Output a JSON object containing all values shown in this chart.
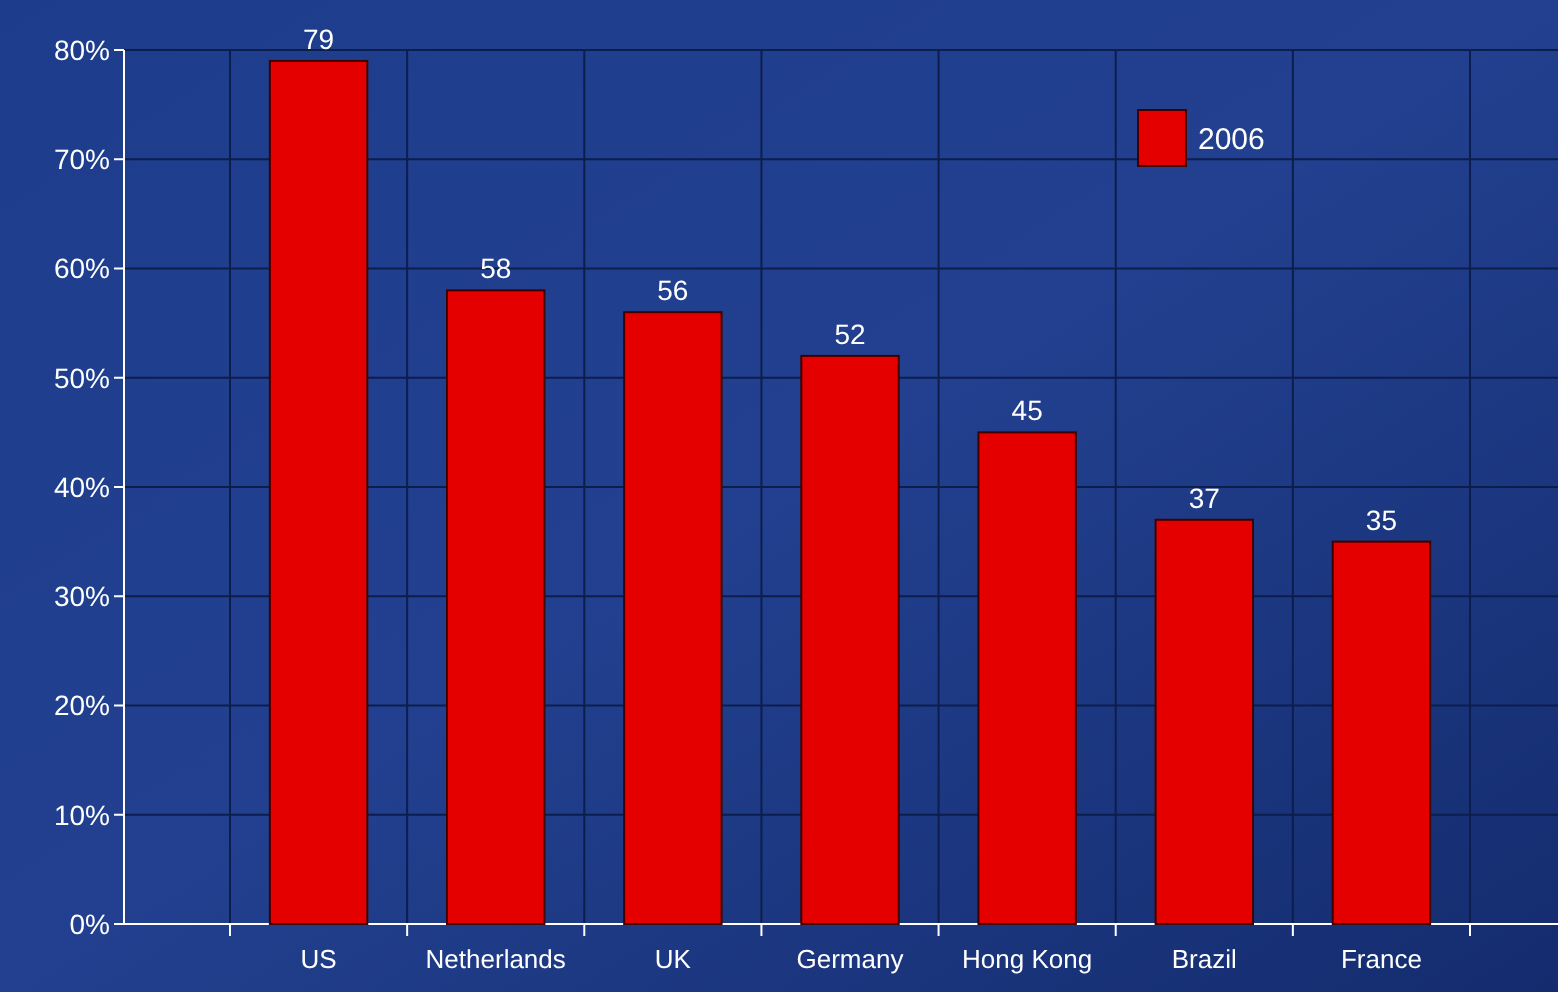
{
  "chart_data": {
    "type": "bar",
    "categories": [
      "US",
      "Netherlands",
      "UK",
      "Germany",
      "Hong Kong",
      "Brazil",
      "France"
    ],
    "series": [
      {
        "name": "2006",
        "color": "#e50000",
        "values": [
          79,
          58,
          56,
          52,
          45,
          37,
          35
        ]
      }
    ],
    "ylim": [
      0,
      80
    ],
    "yticks": [
      {
        "value": 0,
        "label": "0%"
      },
      {
        "value": 10,
        "label": "10%"
      },
      {
        "value": 20,
        "label": "20%"
      },
      {
        "value": 30,
        "label": "30%"
      },
      {
        "value": 40,
        "label": "40%"
      },
      {
        "value": 50,
        "label": "50%"
      },
      {
        "value": 60,
        "label": "60%"
      },
      {
        "value": 70,
        "label": "70%"
      },
      {
        "value": 80,
        "label": "80%"
      }
    ],
    "grid": true,
    "legend": "top right",
    "data_labels": true
  }
}
